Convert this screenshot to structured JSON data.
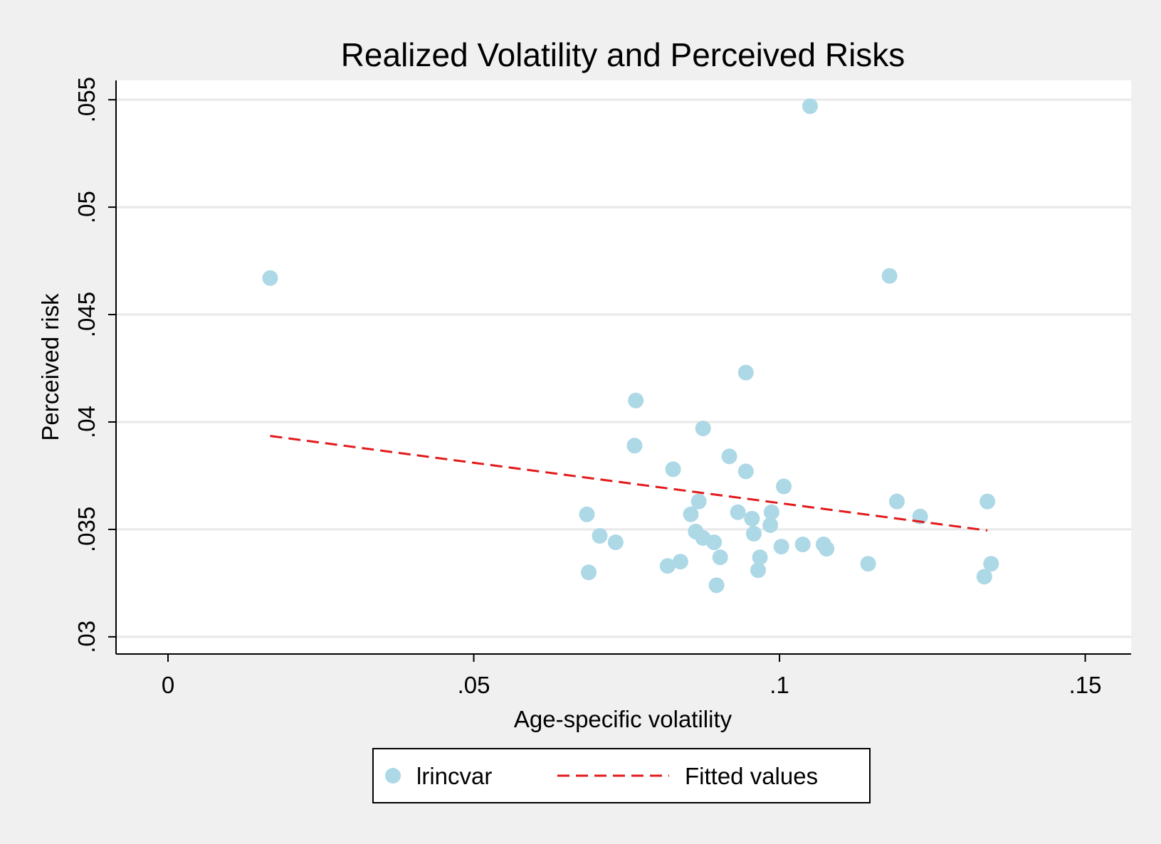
{
  "chart_data": {
    "type": "scatter",
    "title": "Realized Volatility and Perceived Risks",
    "xlabel": "Age-specific volatility",
    "ylabel": "Perceived risk",
    "xlim": [
      -0.0085,
      0.1575
    ],
    "ylim": [
      0.0292,
      0.0559
    ],
    "xticks": [
      0,
      0.05,
      0.1,
      0.15
    ],
    "xtick_labels": [
      "0",
      ".05",
      ".1",
      ".15"
    ],
    "yticks": [
      0.03,
      0.035,
      0.04,
      0.045,
      0.05,
      0.055
    ],
    "ytick_labels": [
      ".03",
      ".035",
      ".04",
      ".045",
      ".05",
      ".055"
    ],
    "grid": "horizontal",
    "legend_position": "bottom",
    "series": [
      {
        "name": "lrincvar",
        "kind": "scatter",
        "color": "#add8e6",
        "points": [
          [
            0.0167,
            0.0467
          ],
          [
            0.105,
            0.0547
          ],
          [
            0.118,
            0.0468
          ],
          [
            0.0945,
            0.0423
          ],
          [
            0.0765,
            0.041
          ],
          [
            0.0875,
            0.0397
          ],
          [
            0.0763,
            0.0389
          ],
          [
            0.0918,
            0.0384
          ],
          [
            0.0826,
            0.0378
          ],
          [
            0.0945,
            0.0377
          ],
          [
            0.1007,
            0.037
          ],
          [
            0.0868,
            0.0363
          ],
          [
            0.1192,
            0.0363
          ],
          [
            0.134,
            0.0363
          ],
          [
            0.0932,
            0.0358
          ],
          [
            0.0987,
            0.0358
          ],
          [
            0.0685,
            0.0357
          ],
          [
            0.0855,
            0.0357
          ],
          [
            0.123,
            0.0356
          ],
          [
            0.0955,
            0.0355
          ],
          [
            0.0985,
            0.0352
          ],
          [
            0.0863,
            0.0349
          ],
          [
            0.0958,
            0.0348
          ],
          [
            0.0706,
            0.0347
          ],
          [
            0.0875,
            0.0346
          ],
          [
            0.0732,
            0.0344
          ],
          [
            0.0893,
            0.0344
          ],
          [
            0.1038,
            0.0343
          ],
          [
            0.1072,
            0.0343
          ],
          [
            0.1003,
            0.0342
          ],
          [
            0.1077,
            0.0341
          ],
          [
            0.0903,
            0.0337
          ],
          [
            0.0968,
            0.0337
          ],
          [
            0.0838,
            0.0335
          ],
          [
            0.0817,
            0.0333
          ],
          [
            0.1145,
            0.0334
          ],
          [
            0.1346,
            0.0334
          ],
          [
            0.0688,
            0.033
          ],
          [
            0.0965,
            0.0331
          ],
          [
            0.1335,
            0.0328
          ],
          [
            0.0897,
            0.0324
          ]
        ]
      },
      {
        "name": "Fitted values",
        "kind": "line",
        "color": "#e31a1c",
        "dash": "dashed",
        "points": [
          [
            0.0167,
            0.03935
          ],
          [
            0.134,
            0.03495
          ]
        ]
      }
    ]
  }
}
